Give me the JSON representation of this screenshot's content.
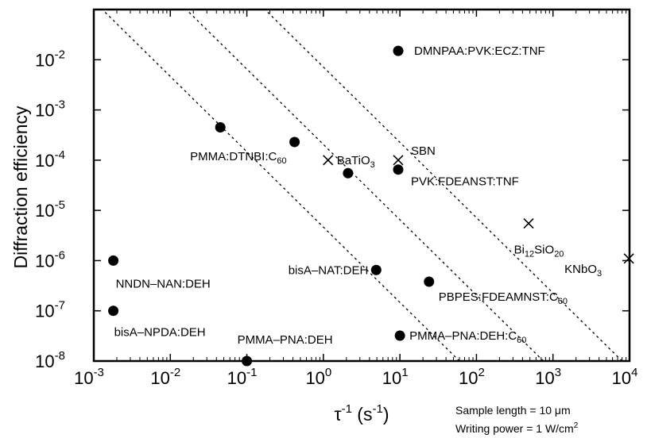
{
  "chart_data": {
    "type": "scatter",
    "x_scale": "log",
    "y_scale": "log",
    "xlim": [
      0.001,
      10000
    ],
    "ylim": [
      1e-08,
      0.1
    ],
    "x_ticks": [
      {
        "value": 0.001,
        "base": "10",
        "exp": "-3"
      },
      {
        "value": 0.01,
        "base": "10",
        "exp": "-2"
      },
      {
        "value": 0.1,
        "base": "10",
        "exp": "-1"
      },
      {
        "value": 1,
        "base": "10",
        "exp": "0"
      },
      {
        "value": 10,
        "base": "10",
        "exp": "1"
      },
      {
        "value": 100,
        "base": "10",
        "exp": "2"
      },
      {
        "value": 1000,
        "base": "10",
        "exp": "3"
      },
      {
        "value": 10000,
        "base": "10",
        "exp": "4"
      }
    ],
    "y_ticks": [
      {
        "value": 1e-08,
        "base": "10",
        "exp": "-8"
      },
      {
        "value": 1e-07,
        "base": "10",
        "exp": "-7"
      },
      {
        "value": 1e-06,
        "base": "10",
        "exp": "-6"
      },
      {
        "value": 1e-05,
        "base": "10",
        "exp": "-5"
      },
      {
        "value": 0.0001,
        "base": "10",
        "exp": "-4"
      },
      {
        "value": 0.001,
        "base": "10",
        "exp": "-3"
      },
      {
        "value": 0.01,
        "base": "10",
        "exp": "-2"
      }
    ],
    "xlabel": "τ⁻¹ (s⁻¹)",
    "ylabel": "Diffraction efficiency",
    "circles": [
      {
        "x": 9.5,
        "y": 0.015,
        "label": "DMNPAA:PVK:ECZ:TNF"
      },
      {
        "x": 0.045,
        "y": 0.00045,
        "label": ""
      },
      {
        "x": 0.42,
        "y": 0.00023,
        "label": "PMMA:DTNBI:C",
        "sub": "60"
      },
      {
        "x": 2.1,
        "y": 5.5e-05,
        "label": ""
      },
      {
        "x": 9.5,
        "y": 6.5e-05,
        "label": "PVK:FDEANST:TNF"
      },
      {
        "x": 0.0018,
        "y": 1e-06,
        "label": "NNDN–NAN:DEH"
      },
      {
        "x": 4.9,
        "y": 6.5e-07,
        "label": "bisA–NAT:DEH"
      },
      {
        "x": 24,
        "y": 3.8e-07,
        "label": "PBPES:FDEAMNST:C",
        "sub": "60"
      },
      {
        "x": 0.0018,
        "y": 1e-07,
        "label": "bisA–NPDA:DEH"
      },
      {
        "x": 10,
        "y": 3.2e-08,
        "label": "PMMA–PNA:DEH:C",
        "sub": "60"
      },
      {
        "x": 0.1,
        "y": 1e-08,
        "label": "PMMA–PNA:DEH"
      }
    ],
    "crosses": [
      {
        "x": 1.15,
        "y": 0.0001,
        "label": "BaTiO",
        "sub": "3"
      },
      {
        "x": 9.5,
        "y": 0.0001,
        "label": "SBN"
      },
      {
        "x": 480,
        "y": 5.5e-06,
        "label": "Bi",
        "sub": "12",
        "label2": "SiO",
        "sub2": "20"
      },
      {
        "x": 9800,
        "y": 1.1e-06,
        "label": "KNbO",
        "sub": "3"
      }
    ],
    "reference_lines": [
      {
        "x_at_ymin": 60,
        "slope_decades": -1.5
      },
      {
        "x_at_ymin": 750,
        "slope_decades": -1.5
      },
      {
        "x_at_ymin": 8000,
        "slope_decades": -1.5
      }
    ],
    "annotations": [
      "Sample length = 10 μm",
      "Writing power = 1 W/cm"
    ],
    "annotation_sup": "2"
  }
}
